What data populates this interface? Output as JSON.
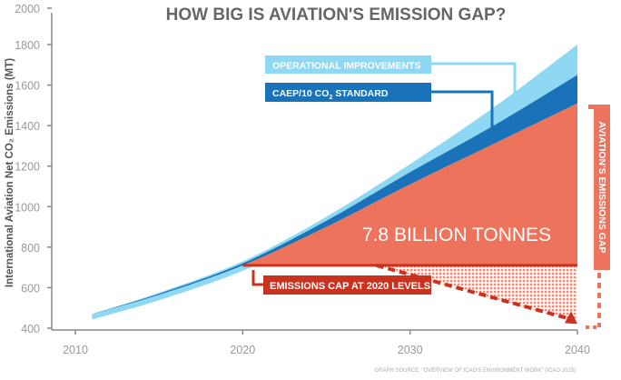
{
  "chart_data": {
    "type": "area",
    "title": "HOW BIG IS AVIATION'S EMISSION GAP?",
    "ylabel": "International Aviation Net CO₂ Emissions (MT)",
    "xlabel": "",
    "xlim": [
      2010,
      2040
    ],
    "ylim": [
      400,
      2000
    ],
    "x_ticks": [
      "2010",
      "2020",
      "2030",
      "2040"
    ],
    "y_ticks": [
      "2000",
      "1800",
      "1600",
      "1400",
      "1200",
      "1000",
      "800",
      "600",
      "400"
    ],
    "grid": false,
    "x": [
      2011,
      2015,
      2020,
      2025,
      2030,
      2035,
      2040
    ],
    "series": [
      {
        "name": "OPERATIONAL IMPROVEMENTS",
        "color": "#8fd8f4",
        "values": [
          470,
          575,
          730,
          950,
          1210,
          1490,
          1800
        ]
      },
      {
        "name": "CAEP/10 CO₂ STANDARD",
        "color": "#1a73b8",
        "values": [
          470,
          570,
          720,
          930,
          1170,
          1400,
          1650
        ]
      },
      {
        "name": "",
        "color": "#ee735d",
        "values": [
          470,
          565,
          710,
          900,
          1110,
          1310,
          1510
        ]
      }
    ],
    "cap": {
      "label": "EMISSIONS CAP AT 2020 LEVELS",
      "value": 710,
      "from": 2020,
      "to": 2040,
      "color": "#c8321e"
    },
    "cap_projection": {
      "x": [
        2028,
        2040
      ],
      "values": [
        710,
        430
      ]
    },
    "gap_area_label": "7.8 BILLION TONNES",
    "gap_bracket_label": "AVIATION'S EMISSIONS GAP",
    "source": "GRAPH SOURCE: \"OVERVIEW OF ICAO'S ENVIRONMENT WORK\" (ICAO 2015)"
  },
  "labels": {
    "operational": "OPERATIONAL IMPROVEMENTS",
    "caep_prefix": "CAEP/10 CO",
    "caep_sub": "2",
    "caep_suffix": " STANDARD"
  }
}
